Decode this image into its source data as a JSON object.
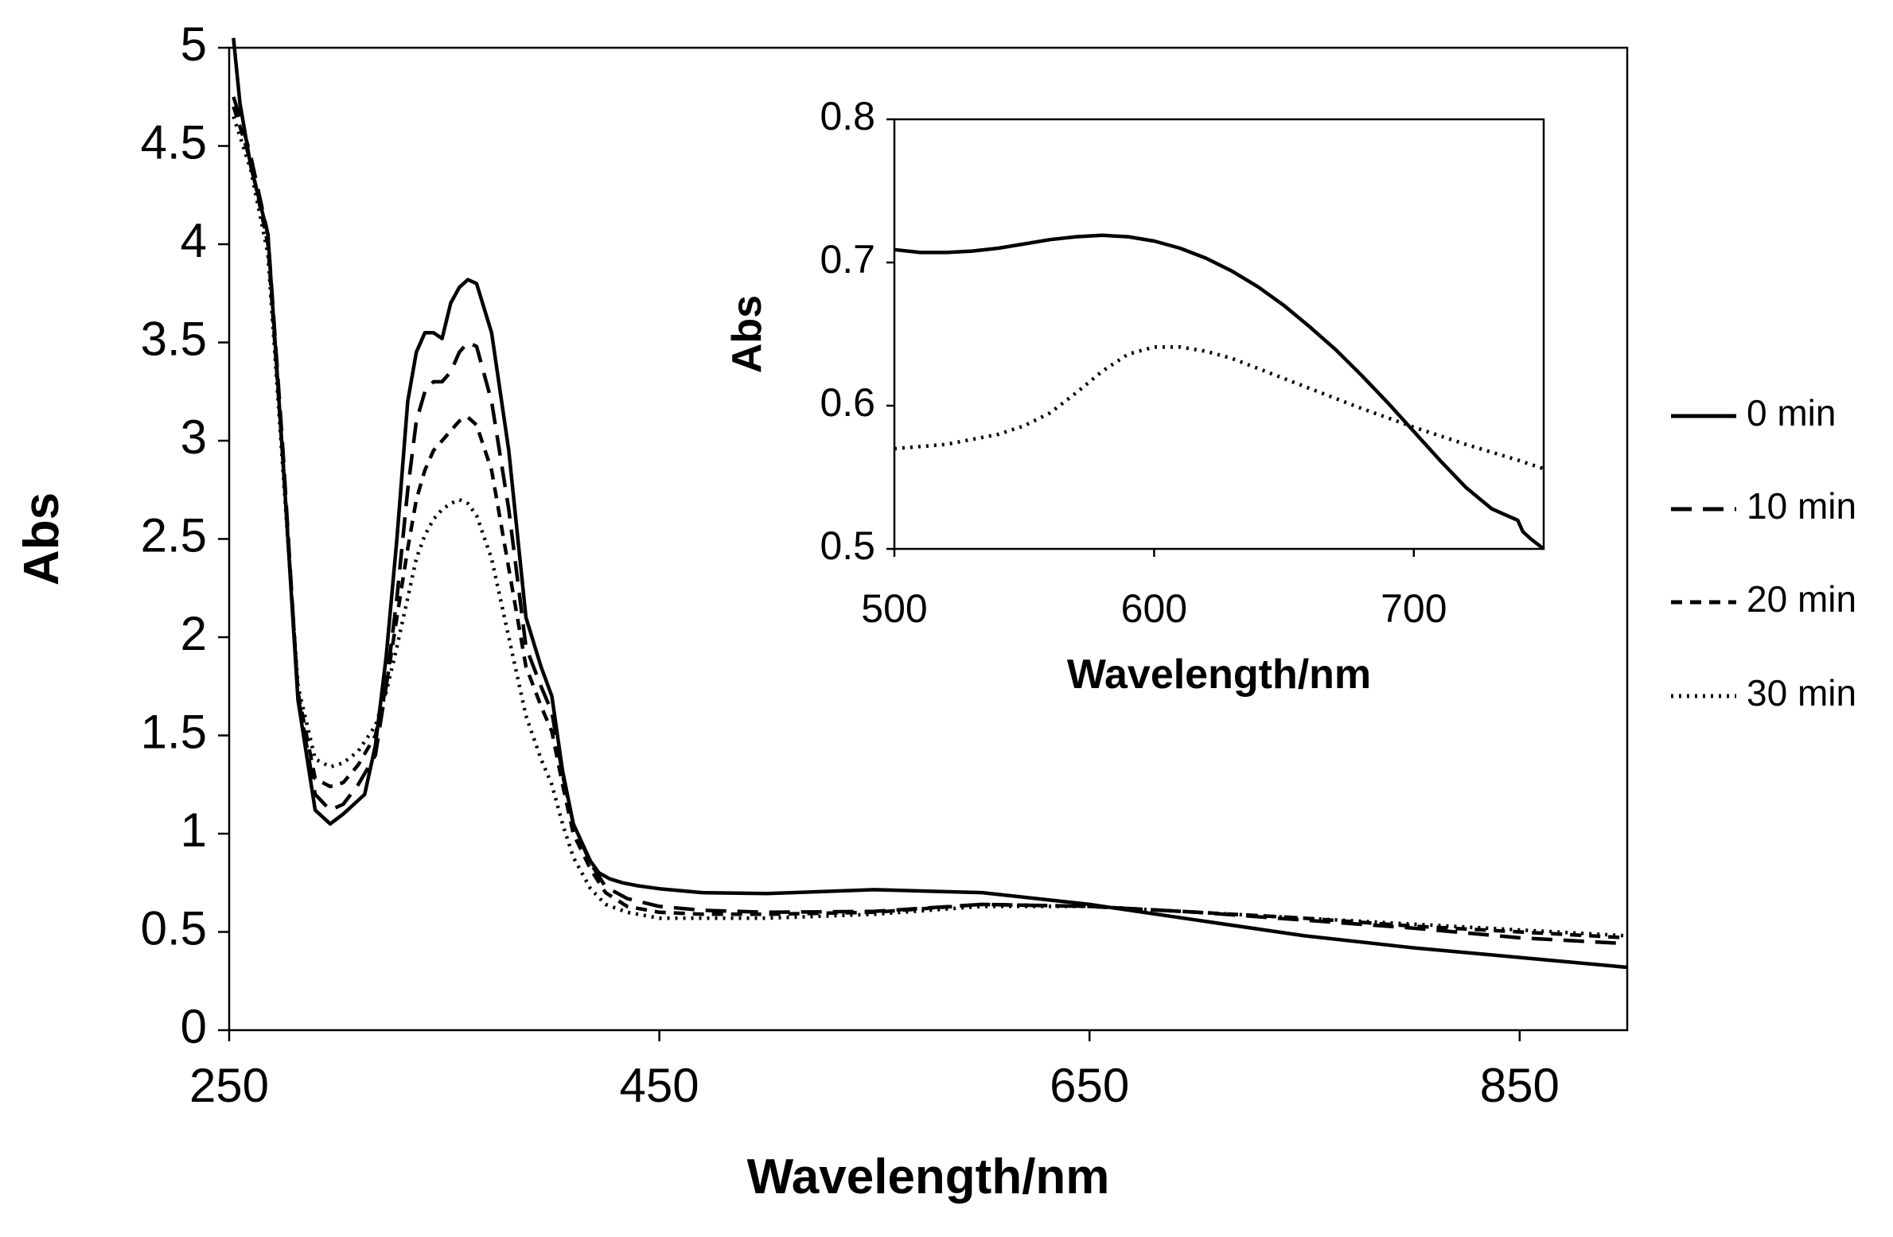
{
  "chart_data": [
    {
      "type": "line",
      "xlabel": "Wavelength/nm",
      "ylabel": "Abs",
      "xlim": [
        250,
        900
      ],
      "ylim": [
        0,
        5
      ],
      "xticks": [
        "250",
        "450",
        "650",
        "850"
      ],
      "yticks": [
        "0",
        "0.5",
        "1",
        "1.5",
        "2",
        "2.5",
        "3",
        "3.5",
        "4",
        "4.5",
        "5"
      ],
      "grid": false,
      "legend_position": "right",
      "series": [
        {
          "name": "0 min",
          "dash": "solid",
          "x": [
            252,
            255,
            260,
            268,
            275,
            282,
            290,
            297,
            303,
            308,
            313,
            318,
            323,
            328,
            333,
            337,
            341,
            345,
            349,
            353,
            357,
            361,
            365,
            372,
            380,
            388,
            395,
            400,
            405,
            410,
            418,
            422,
            427,
            433,
            440,
            450,
            470,
            500,
            550,
            600,
            650,
            700,
            750,
            800,
            850,
            900
          ],
          "y": [
            5.05,
            4.72,
            4.4,
            4.05,
            2.9,
            1.68,
            1.12,
            1.05,
            1.1,
            1.15,
            1.2,
            1.45,
            1.9,
            2.5,
            3.2,
            3.45,
            3.55,
            3.55,
            3.52,
            3.7,
            3.78,
            3.82,
            3.8,
            3.55,
            2.95,
            2.1,
            1.85,
            1.7,
            1.32,
            1.05,
            0.86,
            0.8,
            0.77,
            0.75,
            0.735,
            0.72,
            0.7,
            0.695,
            0.715,
            0.7,
            0.64,
            0.56,
            0.48,
            0.42,
            0.37,
            0.32
          ]
        },
        {
          "name": "10 min",
          "dash": "long-dash",
          "x": [
            252,
            255,
            260,
            268,
            275,
            282,
            290,
            297,
            303,
            310,
            318,
            323,
            328,
            333,
            337,
            341,
            345,
            349,
            353,
            357,
            361,
            365,
            372,
            380,
            388,
            395,
            400,
            405,
            410,
            418,
            425,
            435,
            450,
            470,
            500,
            550,
            600,
            650,
            700,
            750,
            800,
            850,
            900
          ],
          "y": [
            4.75,
            4.65,
            4.45,
            4.05,
            2.95,
            1.7,
            1.2,
            1.12,
            1.15,
            1.25,
            1.4,
            1.75,
            2.2,
            2.75,
            3.1,
            3.25,
            3.3,
            3.3,
            3.35,
            3.45,
            3.5,
            3.48,
            3.2,
            2.65,
            1.95,
            1.75,
            1.62,
            1.3,
            1.05,
            0.85,
            0.73,
            0.67,
            0.63,
            0.61,
            0.6,
            0.605,
            0.64,
            0.63,
            0.6,
            0.56,
            0.52,
            0.47,
            0.44
          ]
        },
        {
          "name": "20 min",
          "dash": "short-dash",
          "x": [
            252,
            255,
            260,
            268,
            275,
            282,
            290,
            297,
            303,
            310,
            318,
            323,
            328,
            333,
            337,
            341,
            345,
            349,
            353,
            357,
            361,
            365,
            372,
            380,
            388,
            395,
            400,
            405,
            410,
            418,
            425,
            435,
            450,
            470,
            500,
            550,
            600,
            650,
            700,
            750,
            800,
            850,
            900
          ],
          "y": [
            4.7,
            4.6,
            4.42,
            4.0,
            2.9,
            1.72,
            1.28,
            1.24,
            1.26,
            1.35,
            1.5,
            1.75,
            2.1,
            2.45,
            2.7,
            2.85,
            2.95,
            3.0,
            3.05,
            3.1,
            3.12,
            3.08,
            2.85,
            2.35,
            1.85,
            1.65,
            1.52,
            1.25,
            1.0,
            0.82,
            0.7,
            0.63,
            0.6,
            0.59,
            0.59,
            0.6,
            0.64,
            0.63,
            0.6,
            0.57,
            0.53,
            0.5,
            0.47
          ]
        },
        {
          "name": "30 min",
          "dash": "dotted",
          "x": [
            252,
            255,
            260,
            268,
            275,
            282,
            290,
            297,
            303,
            310,
            318,
            323,
            328,
            333,
            337,
            341,
            345,
            349,
            353,
            357,
            361,
            365,
            372,
            380,
            388,
            395,
            400,
            405,
            410,
            418,
            425,
            435,
            450,
            470,
            500,
            550,
            600,
            650,
            700,
            750,
            800,
            850,
            900
          ],
          "y": [
            4.65,
            4.55,
            4.38,
            3.95,
            2.85,
            1.75,
            1.38,
            1.34,
            1.36,
            1.42,
            1.55,
            1.72,
            1.95,
            2.2,
            2.4,
            2.52,
            2.6,
            2.65,
            2.68,
            2.7,
            2.68,
            2.62,
            2.4,
            2.0,
            1.6,
            1.38,
            1.25,
            1.05,
            0.88,
            0.72,
            0.64,
            0.6,
            0.57,
            0.57,
            0.57,
            0.59,
            0.63,
            0.63,
            0.6,
            0.57,
            0.54,
            0.51,
            0.48
          ]
        }
      ]
    },
    {
      "type": "line",
      "inset": true,
      "xlabel": "Wavelength/nm",
      "ylabel": "Abs",
      "xlim": [
        500,
        750
      ],
      "ylim": [
        0.5,
        0.8
      ],
      "xticks": [
        "500",
        "600",
        "700"
      ],
      "yticks": [
        "0.5",
        "0.6",
        "0.7",
        "0.8"
      ],
      "grid": false,
      "series": [
        {
          "name": "0 min",
          "dash": "solid",
          "x": [
            500,
            510,
            520,
            530,
            540,
            550,
            560,
            570,
            580,
            590,
            600,
            610,
            620,
            630,
            640,
            650,
            660,
            670,
            680,
            690,
            700,
            710,
            720,
            730,
            735,
            740,
            742,
            745,
            750
          ],
          "y": [
            0.709,
            0.707,
            0.707,
            0.708,
            0.71,
            0.713,
            0.716,
            0.718,
            0.719,
            0.718,
            0.715,
            0.71,
            0.703,
            0.694,
            0.683,
            0.67,
            0.655,
            0.639,
            0.621,
            0.602,
            0.582,
            0.562,
            0.543,
            0.528,
            0.524,
            0.52,
            0.512,
            0.507,
            0.5
          ]
        },
        {
          "name": "30 min",
          "dash": "dotted",
          "x": [
            500,
            520,
            540,
            550,
            560,
            570,
            580,
            590,
            600,
            610,
            620,
            630,
            640,
            650,
            660,
            680,
            700,
            720,
            740,
            750
          ],
          "y": [
            0.57,
            0.573,
            0.58,
            0.586,
            0.595,
            0.609,
            0.624,
            0.636,
            0.641,
            0.641,
            0.638,
            0.633,
            0.626,
            0.619,
            0.612,
            0.598,
            0.585,
            0.573,
            0.562,
            0.556
          ]
        }
      ]
    }
  ]
}
